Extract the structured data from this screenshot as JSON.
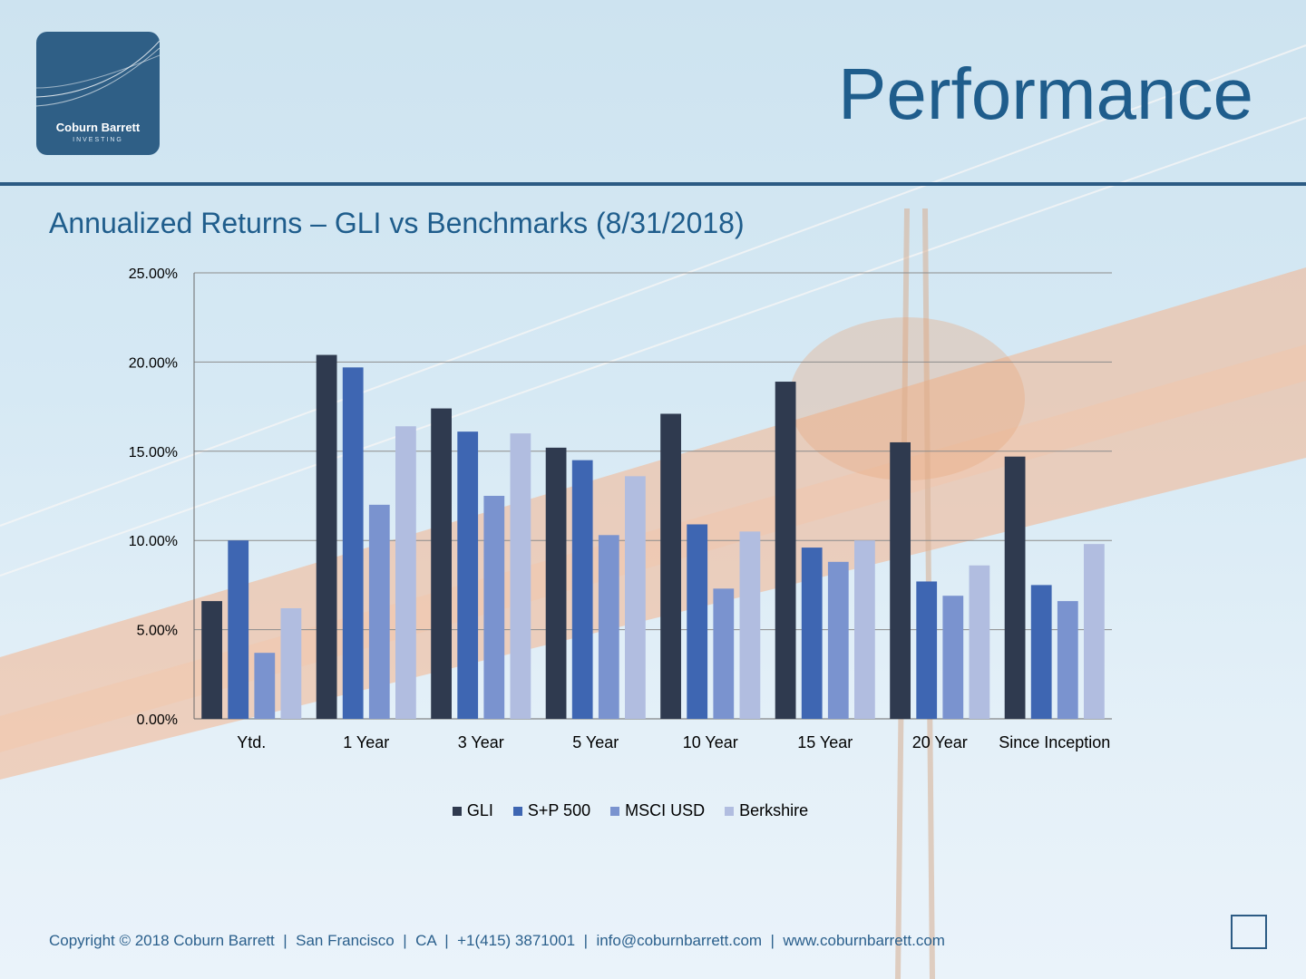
{
  "logo": {
    "name": "Coburn Barrett",
    "tagline": "INVESTING"
  },
  "header": {
    "title": "Performance"
  },
  "chart_heading": "Annualized Returns – GLI vs Benchmarks (8/31/2018)",
  "chart_data": {
    "type": "bar",
    "title": "Annualized Returns – GLI vs Benchmarks (8/31/2018)",
    "categories": [
      "Ytd.",
      "1 Year",
      "3 Year",
      "5 Year",
      "10 Year",
      "15 Year",
      "20 Year",
      "Since Inception"
    ],
    "series": [
      {
        "name": "GLI",
        "color": "#2f3a4f",
        "values": [
          6.6,
          20.4,
          17.4,
          15.2,
          17.1,
          18.9,
          15.5,
          14.7
        ]
      },
      {
        "name": "S+P 500",
        "color": "#3e66b2",
        "values": [
          10.0,
          19.7,
          16.1,
          14.5,
          10.9,
          9.6,
          7.7,
          7.5
        ]
      },
      {
        "name": "MSCI USD",
        "color": "#7a93cf",
        "values": [
          3.7,
          12.0,
          12.5,
          10.3,
          7.3,
          8.8,
          6.9,
          6.6
        ]
      },
      {
        "name": "Berkshire",
        "color": "#b1bde0",
        "values": [
          6.2,
          16.4,
          16.0,
          13.6,
          10.5,
          10.0,
          8.6,
          9.8
        ]
      }
    ],
    "yticks": [
      "0.00%",
      "5.00%",
      "10.00%",
      "15.00%",
      "20.00%",
      "25.00%"
    ],
    "ylim": [
      0,
      25
    ],
    "grid": true,
    "legend_position": "bottom",
    "xlabel": "",
    "ylabel": ""
  },
  "footer": {
    "copyright": "Copyright © 2018 Coburn Barrett",
    "city": "San Francisco",
    "state": "CA",
    "phone": "+1(415) 3871001",
    "email": "info@coburnbarrett.com",
    "website": "www.coburnbarrett.com",
    "separator": "|"
  }
}
